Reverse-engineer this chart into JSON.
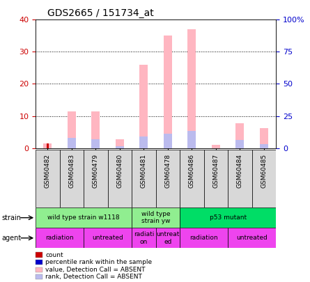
{
  "title": "GDS2665 / 151734_at",
  "samples": [
    "GSM60482",
    "GSM60483",
    "GSM60479",
    "GSM60480",
    "GSM60481",
    "GSM60478",
    "GSM60486",
    "GSM60487",
    "GSM60484",
    "GSM60485"
  ],
  "absent_value": [
    1.5,
    11.5,
    11.5,
    2.8,
    26.0,
    35.0,
    37.0,
    1.0,
    7.8,
    6.3
  ],
  "absent_rank": [
    0.0,
    7.8,
    7.0,
    1.5,
    9.2,
    11.2,
    13.5,
    0.0,
    6.1,
    3.0
  ],
  "count_values": [
    1.5,
    0.0,
    0.0,
    0.0,
    0.0,
    0.0,
    0.0,
    0.0,
    0.0,
    0.0
  ],
  "rank_values": [
    0.0,
    0.0,
    0.0,
    0.0,
    0.0,
    0.0,
    0.0,
    0.0,
    0.0,
    0.0
  ],
  "ylim_left": [
    0,
    40
  ],
  "ylim_right": [
    0,
    100
  ],
  "yticks_left": [
    0,
    10,
    20,
    30,
    40
  ],
  "yticks_right": [
    0,
    25,
    50,
    75,
    100
  ],
  "ytick_labels_right": [
    "0",
    "25",
    "50",
    "75",
    "100%"
  ],
  "strain_groups": [
    {
      "label": "wild type strain w1118",
      "start": 0,
      "end": 4,
      "color": "#90EE90"
    },
    {
      "label": "wild type\nstrain yw",
      "start": 4,
      "end": 6,
      "color": "#90EE90"
    },
    {
      "label": "p53 mutant",
      "start": 6,
      "end": 10,
      "color": "#00DD66"
    }
  ],
  "agent_groups": [
    {
      "label": "radiation",
      "start": 0,
      "end": 2,
      "color": "#EE44EE"
    },
    {
      "label": "untreated",
      "start": 2,
      "end": 4,
      "color": "#EE44EE"
    },
    {
      "label": "radiati\non",
      "start": 4,
      "end": 5,
      "color": "#EE44EE"
    },
    {
      "label": "untreat\ned",
      "start": 5,
      "end": 6,
      "color": "#EE44EE"
    },
    {
      "label": "radiation",
      "start": 6,
      "end": 8,
      "color": "#EE44EE"
    },
    {
      "label": "untreated",
      "start": 8,
      "end": 10,
      "color": "#EE44EE"
    }
  ],
  "legend_items": [
    {
      "label": "count",
      "color": "#CC0000"
    },
    {
      "label": "percentile rank within the sample",
      "color": "#0000CC"
    },
    {
      "label": "value, Detection Call = ABSENT",
      "color": "#FFB6C1"
    },
    {
      "label": "rank, Detection Call = ABSENT",
      "color": "#BBBBEE"
    }
  ],
  "left_tick_color": "#CC0000",
  "right_tick_color": "#0000CC",
  "plot_bg": "#FFFFFF"
}
